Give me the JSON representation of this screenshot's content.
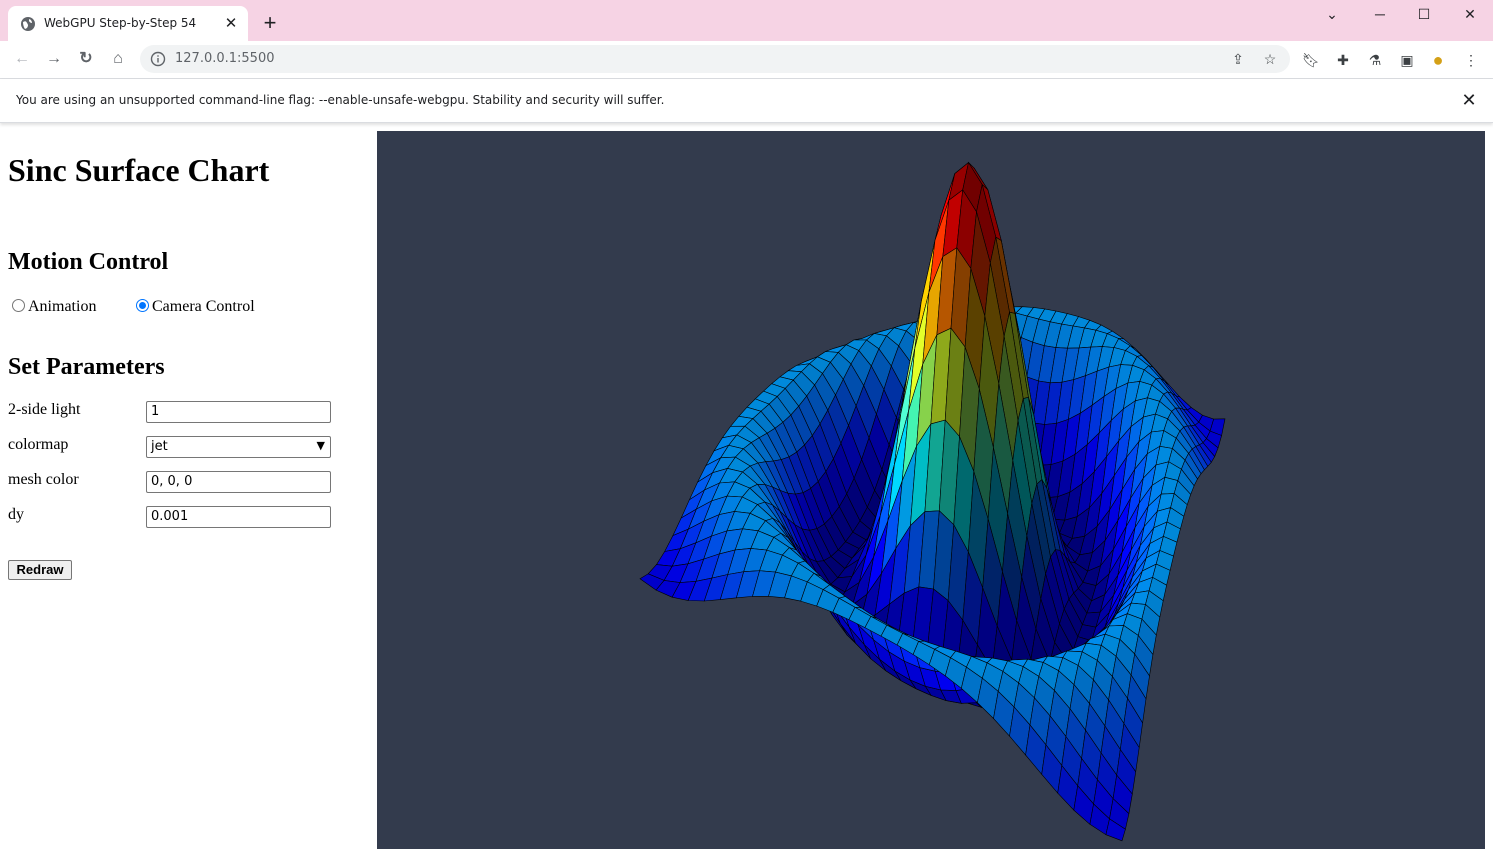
{
  "browser": {
    "tab_title": "WebGPU Step-by-Step 54",
    "url": "127.0.0.1:5500",
    "infobar_message": "You are using an unsupported command-line flag: --enable-unsafe-webgpu. Stability and security will suffer."
  },
  "page": {
    "title": "Sinc Surface Chart",
    "motion_heading": "Motion Control",
    "motion_options": [
      {
        "label": "Animation",
        "selected": false
      },
      {
        "label": "Camera Control",
        "selected": true
      }
    ],
    "params_heading": "Set Parameters",
    "params": {
      "light_label": "2-side light",
      "light_value": "1",
      "colormap_label": "colormap",
      "colormap_value": "jet",
      "mesh_label": "mesh color",
      "mesh_value": "0, 0, 0",
      "dy_label": "dy",
      "dy_value": "0.001"
    },
    "redraw_label": "Redraw"
  },
  "colors": {
    "canvas_bg": "#333b4d",
    "accent": "#0075ff",
    "titlebar": "#f6d3e4"
  }
}
